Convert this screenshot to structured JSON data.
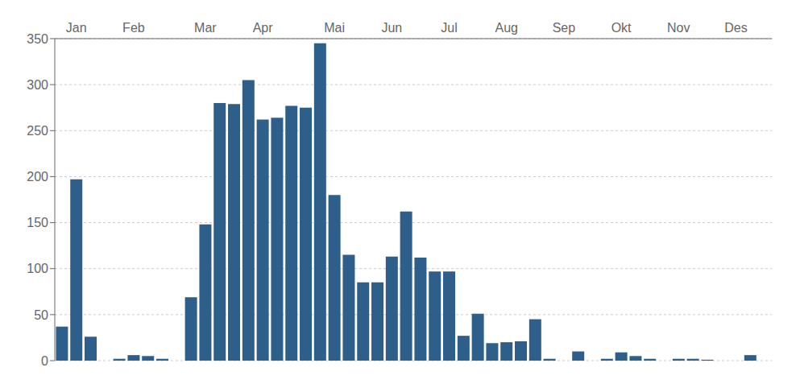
{
  "chart_data": {
    "type": "bar",
    "categories": [
      null,
      "Jan",
      null,
      null,
      null,
      "Feb",
      null,
      null,
      null,
      null,
      "Mar",
      null,
      null,
      null,
      "Apr",
      null,
      null,
      null,
      null,
      "Mai",
      null,
      null,
      null,
      "Jun",
      null,
      null,
      null,
      "Jul",
      null,
      null,
      null,
      "Aug",
      null,
      null,
      null,
      "Sep",
      null,
      null,
      null,
      "Okt",
      null,
      null,
      null,
      "Nov",
      null,
      null,
      null,
      "Des",
      null,
      null
    ],
    "values": [
      37,
      197,
      26,
      0,
      2,
      6,
      5,
      2,
      0,
      69,
      148,
      280,
      279,
      305,
      262,
      264,
      277,
      275,
      345,
      180,
      115,
      85,
      85,
      113,
      162,
      112,
      97,
      97,
      27,
      51,
      19,
      20,
      21,
      45,
      2,
      0,
      10,
      0,
      2,
      9,
      5,
      2,
      0,
      2,
      2,
      1,
      0,
      0,
      6,
      0
    ],
    "color": "#2E5F8A",
    "ylim": [
      0,
      350
    ],
    "yticks": [
      0,
      50,
      100,
      150,
      200,
      250,
      300,
      350
    ],
    "grid": true
  }
}
